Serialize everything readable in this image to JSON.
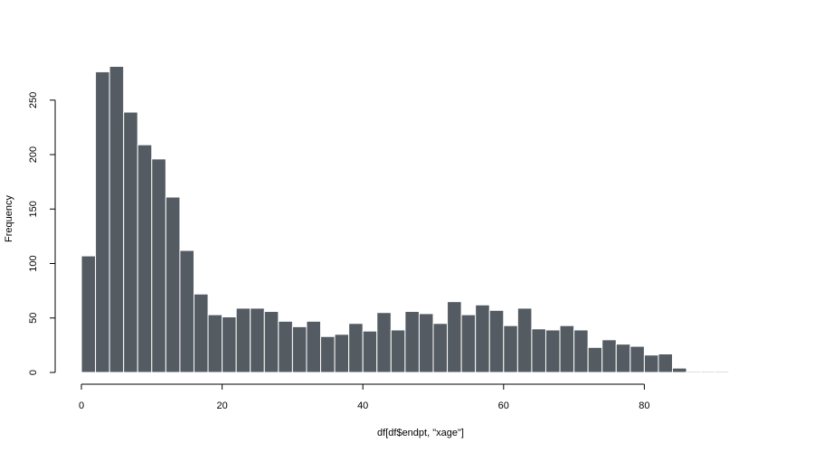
{
  "chart_data": {
    "type": "bar",
    "title": "",
    "xlabel": "df[df$endpt, \"xage\"]",
    "ylabel": "Frequency",
    "bin_width": 2,
    "x_start": 0,
    "values": [
      107,
      276,
      281,
      239,
      209,
      196,
      161,
      112,
      72,
      53,
      51,
      59,
      59,
      56,
      47,
      42,
      47,
      33,
      35,
      45,
      38,
      55,
      39,
      56,
      54,
      45,
      65,
      53,
      62,
      57,
      43,
      59,
      40,
      39,
      43,
      39,
      23,
      30,
      26,
      24,
      16,
      17,
      4,
      1,
      1,
      1
    ],
    "xlim": [
      0,
      92
    ],
    "ylim": [
      0,
      281
    ],
    "xticks": [
      0,
      20,
      40,
      60,
      80
    ],
    "yticks": [
      0,
      50,
      100,
      150,
      200,
      250
    ],
    "bar_color": "#545b62",
    "grid": false
  }
}
